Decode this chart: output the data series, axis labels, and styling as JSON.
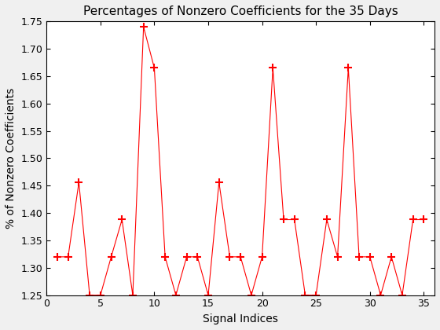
{
  "title": "Percentages of Nonzero Coefficients for the 35 Days",
  "xlabel": "Signal Indices",
  "ylabel": "% of Nonzero Coefficients",
  "x": [
    1,
    2,
    3,
    4,
    5,
    6,
    7,
    8,
    9,
    10,
    11,
    12,
    13,
    14,
    15,
    16,
    17,
    18,
    19,
    20,
    21,
    22,
    23,
    24,
    25,
    26,
    27,
    28,
    29,
    30,
    31,
    32,
    33,
    34,
    35
  ],
  "y": [
    1.32,
    1.32,
    1.456,
    1.25,
    1.25,
    1.32,
    1.388,
    1.25,
    1.74,
    1.665,
    1.32,
    1.25,
    1.32,
    1.32,
    1.25,
    1.456,
    1.32,
    1.32,
    1.25,
    1.32,
    1.665,
    1.388,
    1.388,
    1.25,
    1.25,
    1.388,
    1.32,
    1.665,
    1.32,
    1.32,
    1.25,
    1.32,
    1.25,
    1.388,
    1.388
  ],
  "line_color": "#FF0000",
  "marker": "+",
  "markersize": 7,
  "linewidth": 0.8,
  "xlim": [
    0,
    36
  ],
  "ylim": [
    1.25,
    1.75
  ],
  "xticks": [
    0,
    5,
    10,
    15,
    20,
    25,
    30,
    35
  ],
  "yticks": [
    1.25,
    1.3,
    1.35,
    1.4,
    1.45,
    1.5,
    1.55,
    1.6,
    1.65,
    1.7,
    1.75
  ],
  "title_fontsize": 11,
  "label_fontsize": 10,
  "tick_fontsize": 9,
  "fig_facecolor": "#f0f0f0",
  "axes_facecolor": "#ffffff"
}
